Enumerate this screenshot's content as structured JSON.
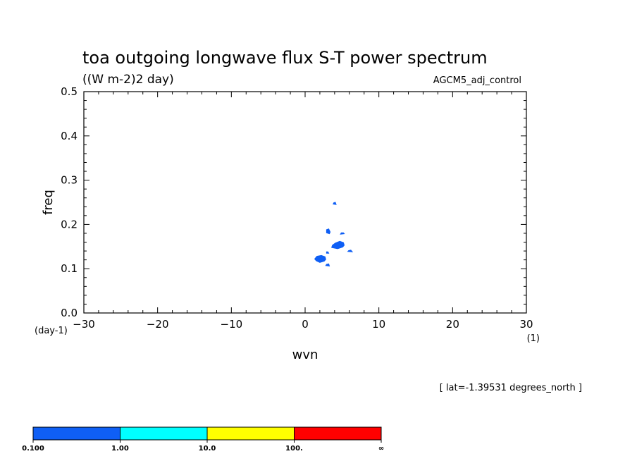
{
  "chart_data": {
    "type": "heatmap",
    "title": "toa outgoing longwave flux S-T power spectrum",
    "units": "((W m-2)2 day)",
    "run_label": "AGCM5_adj_control",
    "footnote": "[ lat=-1.39531 degrees_north ]",
    "xlabel": "wvn",
    "ylabel": "freq",
    "x_unit": "(1)",
    "y_unit": "(day-1)",
    "xlim": [
      -30,
      30
    ],
    "ylim": [
      0,
      0.5
    ],
    "xticks": [
      -30,
      -20,
      -10,
      0,
      10,
      20,
      30
    ],
    "yticks": [
      0.0,
      0.1,
      0.2,
      0.3,
      0.4,
      0.5
    ],
    "ytick_labels": [
      "0.0",
      "0.1",
      "0.2",
      "0.3",
      "0.4",
      "0.5"
    ],
    "levels": [
      "0.100",
      "1.00",
      "10.0",
      "100.",
      "∞"
    ],
    "level_colors": [
      "#0f5ff5",
      "#00ffff",
      "#ffff00",
      "#ff0000"
    ],
    "regions": [
      {
        "level_index": 0,
        "x": [
          1.5,
          2.0,
          2.6,
          2.8,
          2.7,
          2.2,
          1.6,
          1.3
        ],
        "y": [
          0.118,
          0.114,
          0.117,
          0.121,
          0.127,
          0.13,
          0.128,
          0.122
        ]
      },
      {
        "level_index": 0,
        "x": [
          3.6,
          4.4,
          5.1,
          5.3,
          5.2,
          4.7,
          4.1,
          3.7
        ],
        "y": [
          0.148,
          0.145,
          0.149,
          0.153,
          0.159,
          0.162,
          0.158,
          0.153
        ]
      },
      {
        "level_index": 0,
        "x": [
          2.9,
          3.3,
          3.4,
          3.2,
          2.9
        ],
        "y": [
          0.181,
          0.179,
          0.183,
          0.19,
          0.188
        ]
      },
      {
        "level_index": 0,
        "x": [
          3.8,
          4.2,
          4.1,
          3.9
        ],
        "y": [
          0.246,
          0.245,
          0.25,
          0.249
        ]
      },
      {
        "level_index": 0,
        "x": [
          4.8,
          5.3,
          5.2,
          4.9
        ],
        "y": [
          0.178,
          0.179,
          0.181,
          0.181
        ]
      },
      {
        "level_index": 0,
        "x": [
          5.8,
          6.4,
          6.2,
          5.9
        ],
        "y": [
          0.139,
          0.138,
          0.142,
          0.141
        ]
      },
      {
        "level_index": 0,
        "x": [
          2.8,
          3.3,
          3.2,
          2.9
        ],
        "y": [
          0.107,
          0.106,
          0.111,
          0.11
        ]
      },
      {
        "level_index": 0,
        "x": [
          2.9,
          3.2,
          3.1,
          2.9
        ],
        "y": [
          0.135,
          0.135,
          0.138,
          0.138
        ]
      }
    ]
  }
}
